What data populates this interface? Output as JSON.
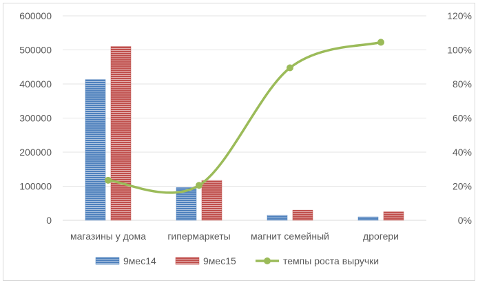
{
  "chart_data": {
    "type": "bar",
    "categories": [
      "магазины у дома",
      "гипермаркеты",
      "магнит семейный",
      "дрогери"
    ],
    "series": [
      {
        "name": "9мес14",
        "type": "bar",
        "axis": "left",
        "color": "#4f81bd",
        "values": [
          413000,
          96000,
          15000,
          10000
        ]
      },
      {
        "name": "9мес15",
        "type": "bar",
        "axis": "left",
        "color": "#c0504d",
        "values": [
          510000,
          117000,
          30000,
          25000
        ]
      },
      {
        "name": "темпы роста выручки",
        "type": "line",
        "smooth": true,
        "axis": "right",
        "color": "#9bbb59",
        "values": [
          0.235,
          0.205,
          0.895,
          1.045
        ]
      }
    ],
    "y_left": {
      "min": 0,
      "max": 600000,
      "ticks": [
        "0",
        "100000",
        "200000",
        "300000",
        "400000",
        "500000",
        "600000"
      ]
    },
    "y_right": {
      "min": 0,
      "max": 1.2,
      "ticks": [
        "0%",
        "20%",
        "40%",
        "60%",
        "80%",
        "100%",
        "120%"
      ]
    },
    "grid": true,
    "legend_position": "bottom"
  }
}
